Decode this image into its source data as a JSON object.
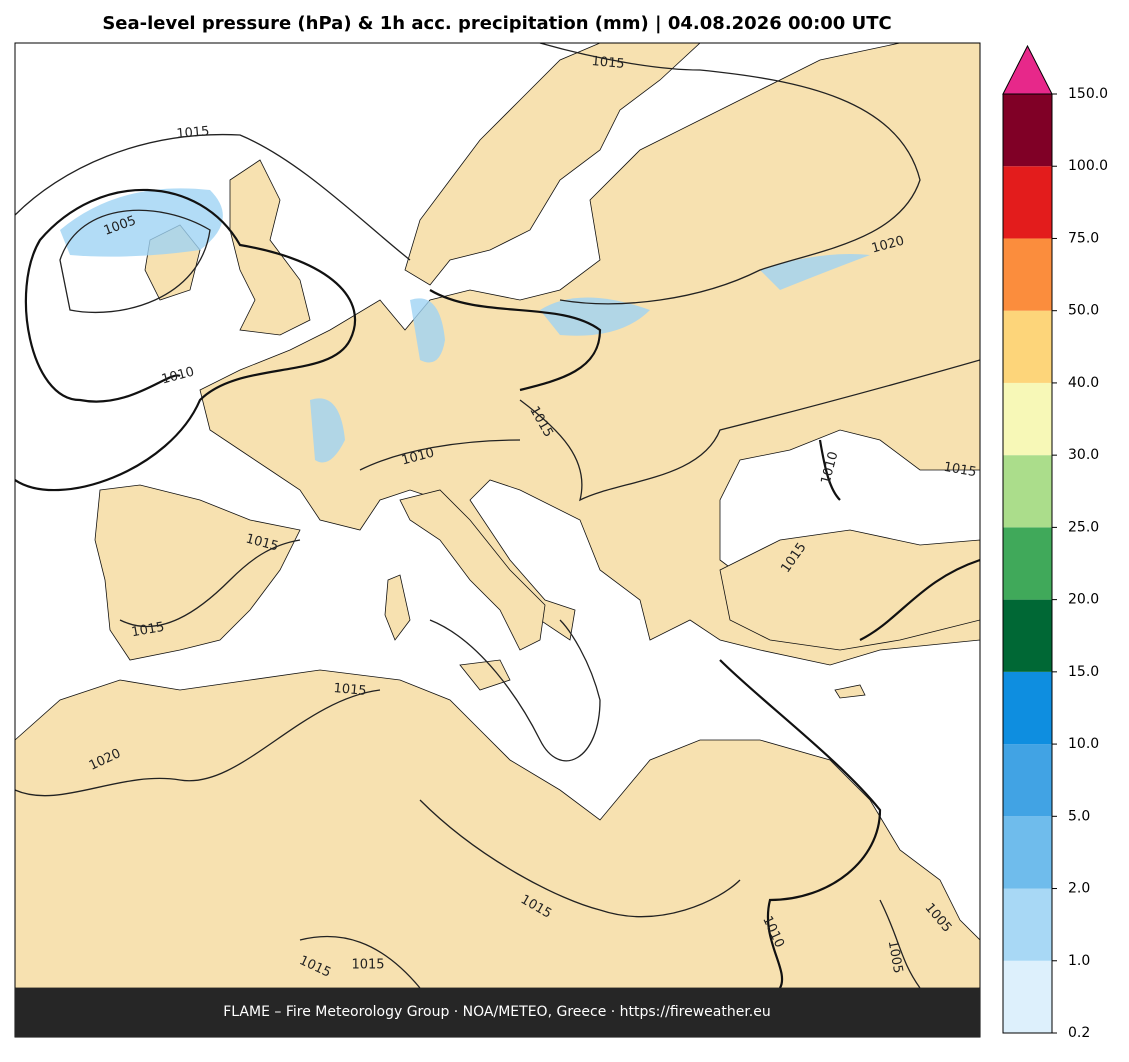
{
  "title": "Sea-level pressure (hPa) & 1h acc. precipitation (mm)  |  04.08.2026 00:00 UTC",
  "footer": "FLAME – Fire Meteorology Group · NOA/METEO, Greece · https://fireweather.eu",
  "contour_labels": [
    1015,
    1005,
    1010,
    1015,
    1020,
    1015,
    1010,
    1010,
    1015,
    1015,
    1015,
    1015,
    1015,
    1020,
    1015,
    1010,
    1005,
    1005,
    1015,
    1015
  ],
  "colorbar": {
    "ticks": [
      {
        "value": 0.2,
        "label": "0.2"
      },
      {
        "value": 1,
        "label": "1.0"
      },
      {
        "value": 2,
        "label": "2.0"
      },
      {
        "value": 5,
        "label": "5.0"
      },
      {
        "value": 10,
        "label": "10.0"
      },
      {
        "value": 15,
        "label": "15.0"
      },
      {
        "value": 20,
        "label": "20.0"
      },
      {
        "value": 25,
        "label": "25.0"
      },
      {
        "value": 30,
        "label": "30.0"
      },
      {
        "value": 40,
        "label": "40.0"
      },
      {
        "value": 50,
        "label": "50.0"
      },
      {
        "value": 75,
        "label": "75.0"
      },
      {
        "value": 100,
        "label": "100.0"
      },
      {
        "value": 150,
        "label": "150.0"
      }
    ],
    "colors": [
      "#ddf0fc",
      "#a8d8f5",
      "#6fbcec",
      "#41a3e4",
      "#0e8ee0",
      "#006835",
      "#40a95a",
      "#abdd8b",
      "#f7f8b7",
      "#fdd57a",
      "#fb8d3d",
      "#e31c1c",
      "#800026"
    ],
    "extend_color": "#e7288a"
  }
}
